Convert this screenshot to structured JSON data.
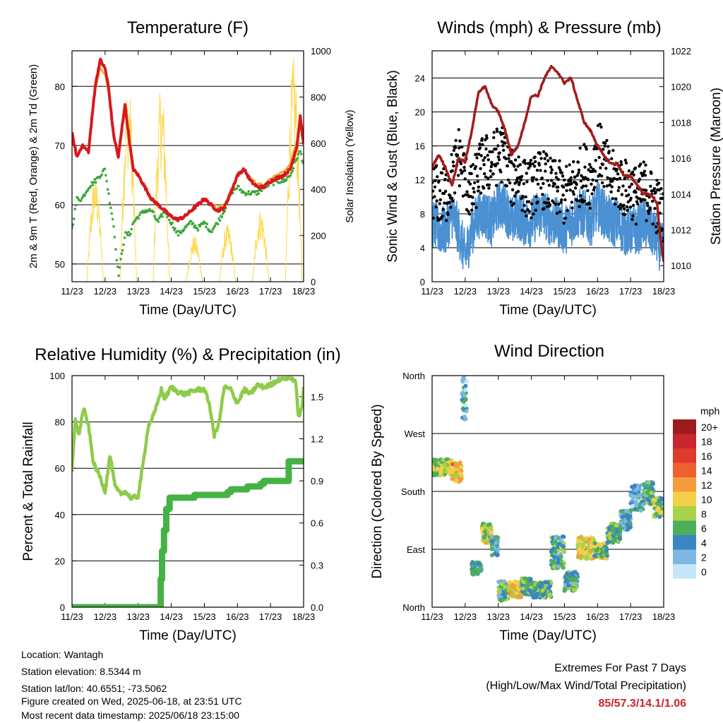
{
  "x_ticks": [
    "11/23",
    "12/23",
    "13/23",
    "14/23",
    "15/23",
    "16/23",
    "17/23",
    "18/23"
  ],
  "colors": {
    "temp_2m": "#d7191c",
    "temp_9m": "#f0a030",
    "dewpoint": "#3aa83a",
    "solar": "#ffd84a",
    "wind": "#4a90d2",
    "gust": "#000000",
    "pressure": "#a11d1d",
    "rh": "#8ecb4a",
    "precip": "#45b245"
  },
  "chart_data": [
    {
      "id": "temperature",
      "type": "line",
      "title": "Temperature (F)",
      "xlabel": "Time (Day/UTC)",
      "ylabel": "2m & 9m T (Red, Orange) & 2m Td (Green)",
      "y2label": "Solar Insolation (Yellow)",
      "ylim": [
        47,
        86
      ],
      "yticks": [
        50,
        60,
        70,
        80
      ],
      "y2lim": [
        0,
        1000
      ],
      "y2ticks": [
        0,
        200,
        400,
        600,
        800,
        1000
      ],
      "grid": true,
      "x": [
        0,
        0.15,
        0.3,
        0.5,
        0.7,
        0.85,
        1.0,
        1.1,
        1.25,
        1.4,
        1.6,
        1.75,
        1.85,
        2.0,
        2.2,
        2.4,
        2.6,
        2.8,
        3.0,
        3.2,
        3.4,
        3.6,
        3.8,
        4.0,
        4.2,
        4.4,
        4.6,
        4.8,
        5.0,
        5.2,
        5.4,
        5.6,
        5.8,
        6.0,
        6.2,
        6.4,
        6.6,
        6.8,
        6.9,
        7.0
      ],
      "series": [
        {
          "axis": "left",
          "style": "thick",
          "values": [
            72,
            68,
            70,
            69,
            80,
            84.5,
            83,
            80,
            72,
            68,
            77,
            70,
            66,
            65,
            63,
            61,
            60,
            59,
            58,
            57.5,
            58,
            59,
            60,
            61,
            60,
            59,
            59.5,
            62,
            65,
            66,
            64,
            63,
            63,
            64,
            64.5,
            65,
            66,
            70,
            75,
            70
          ]
        },
        {
          "axis": "left",
          "style": "thin",
          "values": [
            71,
            68,
            70,
            69,
            79,
            83,
            82,
            79,
            72,
            68,
            76,
            70,
            66,
            65,
            63,
            61,
            60,
            59,
            58,
            57.5,
            58,
            59,
            60,
            61,
            60,
            59.5,
            60,
            62.5,
            65,
            66,
            64.5,
            63.5,
            63.5,
            64.5,
            65,
            65.5,
            67,
            71,
            74,
            71
          ]
        },
        {
          "axis": "left",
          "style": "dotted",
          "values": [
            56,
            61,
            61,
            63,
            64,
            65,
            66,
            62,
            57,
            48,
            55,
            55,
            57,
            58,
            59,
            59,
            57,
            59,
            57,
            55,
            56,
            57,
            56,
            57,
            55.5,
            57,
            59,
            62,
            63,
            62,
            62,
            62,
            63,
            63.5,
            64,
            64,
            65,
            68,
            69,
            67
          ]
        },
        {
          "axis": "right",
          "style": "solar",
          "days": [
            0,
            1,
            2,
            3,
            4,
            5,
            6
          ],
          "peaks": [
            470,
            870,
            860,
            200,
            250,
            320,
            980
          ]
        }
      ]
    },
    {
      "id": "winds",
      "type": "line",
      "title": "Winds (mph) & Pressure (mb)",
      "xlabel": "Time (Day/UTC)",
      "ylabel": "Sonic Wind & Gust (Blue, Black)",
      "y2label": "Station Pressure (Maroon)",
      "ylim": [
        0,
        27.2
      ],
      "yticks": [
        0,
        4,
        8,
        12,
        16,
        20,
        24
      ],
      "y2lim": [
        1009.1,
        1022
      ],
      "y2ticks": [
        1010,
        1012,
        1014,
        1016,
        1018,
        1020,
        1022
      ],
      "grid": true,
      "x": [
        0,
        0.2,
        0.4,
        0.6,
        0.8,
        1.0,
        1.2,
        1.4,
        1.6,
        1.8,
        2.0,
        2.2,
        2.4,
        2.6,
        2.8,
        3.0,
        3.2,
        3.4,
        3.6,
        3.8,
        4.0,
        4.2,
        4.4,
        4.6,
        4.8,
        5.0,
        5.2,
        5.4,
        5.6,
        5.8,
        6.0,
        6.2,
        6.4,
        6.6,
        6.8,
        6.9,
        7.0
      ],
      "series": [
        {
          "name": "Sonic Wind",
          "axis": "left",
          "style": "wind",
          "values": [
            7,
            6,
            6,
            8,
            6,
            3,
            6,
            8,
            8,
            7,
            9,
            9,
            7,
            8,
            7,
            7,
            8,
            8,
            7,
            7,
            6,
            7,
            8,
            8,
            7,
            9,
            8,
            7,
            7,
            6,
            6,
            6,
            7,
            6,
            5,
            4,
            4
          ]
        },
        {
          "name": "Gust",
          "axis": "left",
          "style": "gust",
          "values": [
            11,
            10,
            10,
            12,
            15,
            12,
            10,
            13,
            14,
            14,
            15,
            15,
            12,
            13,
            11,
            11,
            12,
            12,
            11,
            11,
            10,
            11,
            12,
            13,
            12,
            16,
            14,
            12,
            12,
            11,
            11,
            10,
            11,
            10,
            9,
            8,
            8
          ]
        },
        {
          "name": "Station Pressure",
          "axis": "right",
          "style": "pressure",
          "values": [
            1015.5,
            1016.2,
            1015.5,
            1014.5,
            1016,
            1015.8,
            1017.5,
            1019.7,
            1020,
            1019,
            1018.6,
            1017.6,
            1016.2,
            1016.7,
            1018,
            1019.5,
            1019.5,
            1020.5,
            1021.1,
            1020.8,
            1020.2,
            1020.5,
            1019.2,
            1018,
            1017.5,
            1016.7,
            1016.1,
            1015.7,
            1015.7,
            1015,
            1015,
            1014.5,
            1014,
            1014,
            1013.5,
            1011.5,
            1010.2
          ]
        }
      ]
    },
    {
      "id": "humidity",
      "type": "line",
      "title": "Relative Humidity (%) & Precipitation (in)",
      "xlabel": "Time (Day/UTC)",
      "ylabel": "Percent & Total Rainfall",
      "ylim": [
        0,
        100
      ],
      "yticks": [
        0,
        20,
        40,
        60,
        80,
        100
      ],
      "y2lim": [
        0,
        1.65
      ],
      "y2ticks": [
        "0.0",
        "0.3",
        "0.6",
        "0.9",
        "1.2",
        "1.5"
      ],
      "y2tick_values": [
        0,
        0.3,
        0.6,
        0.9,
        1.2,
        1.5
      ],
      "grid": true,
      "x": [
        0,
        0.1,
        0.2,
        0.35,
        0.5,
        0.65,
        0.8,
        1.0,
        1.15,
        1.3,
        1.45,
        1.6,
        1.8,
        2.0,
        2.15,
        2.3,
        2.5,
        2.7,
        2.8,
        3.0,
        3.2,
        3.4,
        3.6,
        3.8,
        4.0,
        4.15,
        4.3,
        4.45,
        4.6,
        4.8,
        5.0,
        5.2,
        5.4,
        5.6,
        5.8,
        6.0,
        6.2,
        6.4,
        6.6,
        6.75,
        6.85,
        6.95,
        7.0
      ],
      "series": [
        {
          "name": "RH",
          "axis": "left",
          "style": "rh",
          "values": [
            58,
            82,
            74,
            86,
            78,
            62,
            58,
            50,
            66,
            52,
            49,
            50,
            47,
            48,
            62,
            78,
            84,
            94,
            90,
            95,
            93,
            92,
            93,
            94,
            94,
            88,
            74,
            80,
            95,
            94,
            88,
            94,
            92,
            96,
            95,
            96,
            98,
            99,
            99,
            98,
            82,
            86,
            95
          ]
        },
        {
          "name": "Precipitation",
          "axis": "right",
          "style": "precip",
          "steps": [
            [
              0,
              0
            ],
            [
              2.65,
              0
            ],
            [
              2.68,
              0.2
            ],
            [
              2.72,
              0.4
            ],
            [
              2.78,
              0.55
            ],
            [
              2.85,
              0.7
            ],
            [
              2.95,
              0.78
            ],
            [
              3.6,
              0.78
            ],
            [
              3.7,
              0.8
            ],
            [
              4.7,
              0.82
            ],
            [
              4.8,
              0.84
            ],
            [
              5.3,
              0.86
            ],
            [
              5.7,
              0.88
            ],
            [
              5.8,
              0.9
            ],
            [
              6.5,
              0.9
            ],
            [
              6.55,
              1.04
            ],
            [
              7.0,
              1.04
            ]
          ]
        }
      ]
    },
    {
      "id": "direction",
      "type": "scatter",
      "title": "Wind Direction",
      "xlabel": "Time (Day/UTC)",
      "ylabel": "Direction (Colored By Speed)",
      "yticks": [
        "North",
        "East",
        "South",
        "West",
        "North"
      ],
      "ylim": [
        0,
        360
      ],
      "grid": true,
      "segments": [
        [
          0,
          0.6,
          205,
          230,
          8
        ],
        [
          0.6,
          0.9,
          195,
          225,
          11
        ],
        [
          0.9,
          1.05,
          290,
          360,
          3
        ],
        [
          1.2,
          1.5,
          50,
          70,
          4
        ],
        [
          1.5,
          1.8,
          100,
          130,
          9
        ],
        [
          1.8,
          2.0,
          80,
          110,
          4
        ],
        [
          2.0,
          2.3,
          10,
          40,
          5
        ],
        [
          2.3,
          2.7,
          15,
          40,
          10
        ],
        [
          2.7,
          3.0,
          20,
          45,
          6
        ],
        [
          3.0,
          3.6,
          15,
          40,
          6
        ],
        [
          3.6,
          4.0,
          60,
          110,
          5
        ],
        [
          4.0,
          4.4,
          25,
          55,
          5
        ],
        [
          4.4,
          4.9,
          75,
          110,
          10
        ],
        [
          4.9,
          5.3,
          75,
          100,
          7
        ],
        [
          5.3,
          5.7,
          100,
          130,
          6
        ],
        [
          5.7,
          6.0,
          120,
          150,
          4
        ],
        [
          6.0,
          6.4,
          150,
          190,
          3
        ],
        [
          6.4,
          6.7,
          160,
          195,
          5
        ],
        [
          6.7,
          7.0,
          140,
          170,
          7
        ]
      ],
      "legend": {
        "title": "mph",
        "labels": [
          "20+",
          "18",
          "16",
          "14",
          "12",
          "10",
          "8",
          "6",
          "4",
          "2",
          "0"
        ],
        "colors": [
          "#9b1c1f",
          "#c8262c",
          "#e03a2e",
          "#f0602e",
          "#f59c3c",
          "#f5cf4a",
          "#a9d34a",
          "#4caf5b",
          "#3b85c4",
          "#7db8e2",
          "#c4e6f7"
        ],
        "placement": "right"
      }
    }
  ],
  "footer": {
    "location": "Location: Wantagh",
    "elevation": "Station elevation: 8.5344 m",
    "latlon": "Station lat/lon: 40.6551; -73.5062",
    "created": "Figure created on Wed, 2025-06-18, at 23:51 UTC",
    "recent": "Most recent data timestamp: 2025/06/18 23:15:00"
  },
  "extremes": {
    "title": "Extremes For Past 7 Days",
    "subtitle": "(High/Low/Max Wind/Total Precipitation)",
    "values": "85/57.3/14.1/1.06"
  }
}
